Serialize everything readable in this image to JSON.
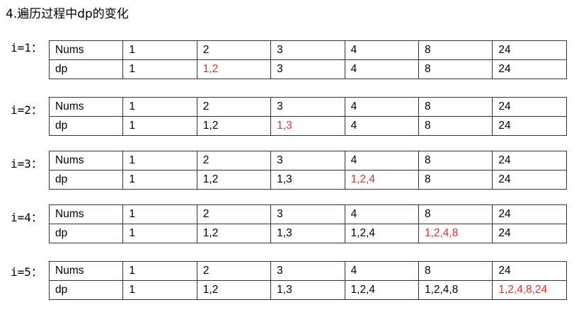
{
  "heading": "4.遍历过程中dp的变化",
  "accent_color": "#e8292a",
  "blocks": [
    {
      "label": "i=1：",
      "nums_header": "Nums",
      "nums": [
        "1",
        "2",
        "3",
        "4",
        "8",
        "24"
      ],
      "dp_header": "dp",
      "dp": [
        "1",
        "1,2",
        "3",
        "4",
        "8",
        "24"
      ],
      "highlight_index": 1
    },
    {
      "label": "i=2：",
      "nums_header": "Nums",
      "nums": [
        "1",
        "2",
        "3",
        "4",
        "8",
        "24"
      ],
      "dp_header": "dp",
      "dp": [
        "1",
        "1,2",
        "1,3",
        "4",
        "8",
        "24"
      ],
      "highlight_index": 2
    },
    {
      "label": "i=3：",
      "nums_header": "Nums",
      "nums": [
        "1",
        "2",
        "3",
        "4",
        "8",
        "24"
      ],
      "dp_header": "dp",
      "dp": [
        "1",
        "1,2",
        "1,3",
        "1,2,4",
        "8",
        "24"
      ],
      "highlight_index": 3
    },
    {
      "label": "i=4：",
      "nums_header": "Nums",
      "nums": [
        "1",
        "2",
        "3",
        "4",
        "8",
        "24"
      ],
      "dp_header": "dp",
      "dp": [
        "1",
        "1,2",
        "1,3",
        "1,2,4",
        "1,2,4,8",
        "24"
      ],
      "highlight_index": 4
    },
    {
      "label": "i=5：",
      "nums_header": "Nums",
      "nums": [
        "1",
        "2",
        "3",
        "4",
        "8",
        "24"
      ],
      "dp_header": "dp",
      "dp": [
        "1",
        "1,2",
        "1,3",
        "1,2,4",
        "1,2,4,8",
        "1,2,4,8,24"
      ],
      "highlight_index": 5
    }
  ]
}
